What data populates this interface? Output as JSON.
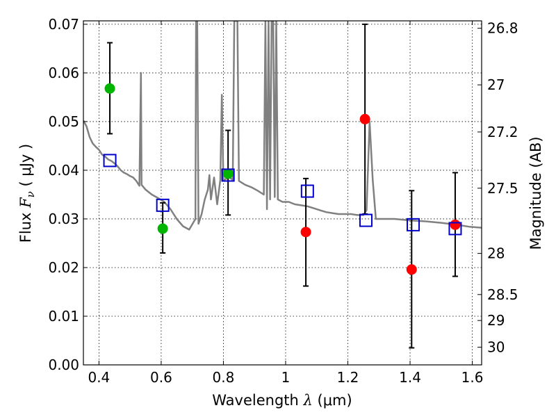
{
  "chart_data": {
    "type": "scatter",
    "title": "",
    "x_label": {
      "pre": "Wavelength ",
      "symbol": "λ",
      "unit": " (μm)"
    },
    "y_label": {
      "pre": "Flux ",
      "symbol": "F",
      "subscript": "ν",
      "unit": " ( μJy )"
    },
    "y2_label": "Magnitude (AB)",
    "xlim": [
      0.35,
      1.63
    ],
    "ylim": [
      0.0,
      0.0707
    ],
    "x_ticks": [
      0.4,
      0.6,
      0.8,
      1.0,
      1.2,
      1.4,
      1.6
    ],
    "x_tick_labels": [
      "0.4",
      "0.6",
      "0.8",
      "1",
      "1.2",
      "1.4",
      "1.6"
    ],
    "y_ticks": [
      0.0,
      0.01,
      0.02,
      0.03,
      0.04,
      0.05,
      0.06,
      0.07
    ],
    "y_tick_labels": [
      "0.00",
      "0.01",
      "0.02",
      "0.03",
      "0.04",
      "0.05",
      "0.06",
      "0.07"
    ],
    "y2_ticks": [
      {
        "mag": 26.8,
        "label": "26.8"
      },
      {
        "mag": 27,
        "label": "27"
      },
      {
        "mag": 27.2,
        "label": "27.2"
      },
      {
        "mag": 27.5,
        "label": "27.5"
      },
      {
        "mag": 28,
        "label": "28"
      },
      {
        "mag": 28.5,
        "label": "28.5"
      },
      {
        "mag": 29,
        "label": "29"
      },
      {
        "mag": 30,
        "label": "30"
      }
    ],
    "grid": true,
    "colors": {
      "template": "#808080",
      "green": "#00b400",
      "red": "#ff0000",
      "model_square": "#0000cc",
      "errorbar": "#000000"
    },
    "template_spectrum": [
      [
        0.35,
        0.0502
      ],
      [
        0.36,
        0.049
      ],
      [
        0.37,
        0.0468
      ],
      [
        0.38,
        0.0455
      ],
      [
        0.39,
        0.0448
      ],
      [
        0.4,
        0.0442
      ],
      [
        0.41,
        0.0432
      ],
      [
        0.42,
        0.0428
      ],
      [
        0.43,
        0.0422
      ],
      [
        0.44,
        0.0419
      ],
      [
        0.45,
        0.0414
      ],
      [
        0.46,
        0.0408
      ],
      [
        0.47,
        0.04
      ],
      [
        0.48,
        0.0395
      ],
      [
        0.49,
        0.0392
      ],
      [
        0.5,
        0.0388
      ],
      [
        0.51,
        0.0385
      ],
      [
        0.52,
        0.0378
      ],
      [
        0.53,
        0.0368
      ],
      [
        0.535,
        0.06
      ],
      [
        0.537,
        0.037
      ],
      [
        0.55,
        0.036
      ],
      [
        0.57,
        0.035
      ],
      [
        0.59,
        0.0343
      ],
      [
        0.61,
        0.0335
      ],
      [
        0.63,
        0.032
      ],
      [
        0.65,
        0.03
      ],
      [
        0.67,
        0.0285
      ],
      [
        0.69,
        0.0278
      ],
      [
        0.71,
        0.03
      ],
      [
        0.712,
        0.0707
      ],
      [
        0.716,
        0.0707
      ],
      [
        0.72,
        0.029
      ],
      [
        0.73,
        0.031
      ],
      [
        0.74,
        0.034
      ],
      [
        0.75,
        0.036
      ],
      [
        0.755,
        0.039
      ],
      [
        0.76,
        0.034
      ],
      [
        0.77,
        0.0385
      ],
      [
        0.78,
        0.033
      ],
      [
        0.79,
        0.038
      ],
      [
        0.795,
        0.0555
      ],
      [
        0.8,
        0.038
      ],
      [
        0.82,
        0.0385
      ],
      [
        0.83,
        0.038
      ],
      [
        0.835,
        0.0707
      ],
      [
        0.845,
        0.0707
      ],
      [
        0.85,
        0.0378
      ],
      [
        0.87,
        0.037
      ],
      [
        0.89,
        0.0365
      ],
      [
        0.91,
        0.0358
      ],
      [
        0.93,
        0.035
      ],
      [
        0.935,
        0.0707
      ],
      [
        0.94,
        0.032
      ],
      [
        0.945,
        0.0707
      ],
      [
        0.95,
        0.034
      ],
      [
        0.955,
        0.0707
      ],
      [
        0.96,
        0.0707
      ],
      [
        0.965,
        0.0345
      ],
      [
        0.97,
        0.0707
      ],
      [
        0.975,
        0.034
      ],
      [
        0.99,
        0.0335
      ],
      [
        1.01,
        0.0335
      ],
      [
        1.03,
        0.033
      ],
      [
        1.05,
        0.0328
      ],
      [
        1.07,
        0.0326
      ],
      [
        1.09,
        0.0322
      ],
      [
        1.11,
        0.0318
      ],
      [
        1.13,
        0.0314
      ],
      [
        1.15,
        0.0312
      ],
      [
        1.17,
        0.031
      ],
      [
        1.19,
        0.031
      ],
      [
        1.21,
        0.031
      ],
      [
        1.23,
        0.0308
      ],
      [
        1.25,
        0.0308
      ],
      [
        1.26,
        0.0318
      ],
      [
        1.27,
        0.05
      ],
      [
        1.28,
        0.038
      ],
      [
        1.29,
        0.03
      ],
      [
        1.31,
        0.03
      ],
      [
        1.35,
        0.03
      ],
      [
        1.4,
        0.0297
      ],
      [
        1.45,
        0.0295
      ],
      [
        1.5,
        0.0292
      ],
      [
        1.55,
        0.0288
      ],
      [
        1.59,
        0.0284
      ],
      [
        1.63,
        0.0282
      ]
    ],
    "series": [
      {
        "name": "observed-green",
        "color_key": "green",
        "points": [
          {
            "x": 0.435,
            "y": 0.0568,
            "err_low": 0.0475,
            "err_high": 0.0662
          },
          {
            "x": 0.605,
            "y": 0.028,
            "err_low": 0.023,
            "err_high": 0.0333
          },
          {
            "x": 0.815,
            "y": 0.0393,
            "err_low": 0.0308,
            "err_high": 0.0482
          }
        ]
      },
      {
        "name": "observed-red",
        "color_key": "red",
        "points": [
          {
            "x": 1.065,
            "y": 0.0273,
            "err_low": 0.0162,
            "err_high": 0.0383
          },
          {
            "x": 1.255,
            "y": 0.0505,
            "err_low": 0.031,
            "err_high": 0.07
          },
          {
            "x": 1.405,
            "y": 0.0196,
            "err_low": 0.0035,
            "err_high": 0.0358
          },
          {
            "x": 1.545,
            "y": 0.0288,
            "err_low": 0.0182,
            "err_high": 0.0395
          }
        ]
      },
      {
        "name": "model-squares",
        "color_key": "model_square",
        "points": [
          {
            "x": 0.435,
            "y": 0.042
          },
          {
            "x": 0.605,
            "y": 0.0328
          },
          {
            "x": 0.815,
            "y": 0.039
          },
          {
            "x": 1.07,
            "y": 0.0357
          },
          {
            "x": 1.258,
            "y": 0.0297
          },
          {
            "x": 1.41,
            "y": 0.0288
          },
          {
            "x": 1.545,
            "y": 0.028
          }
        ]
      }
    ]
  }
}
